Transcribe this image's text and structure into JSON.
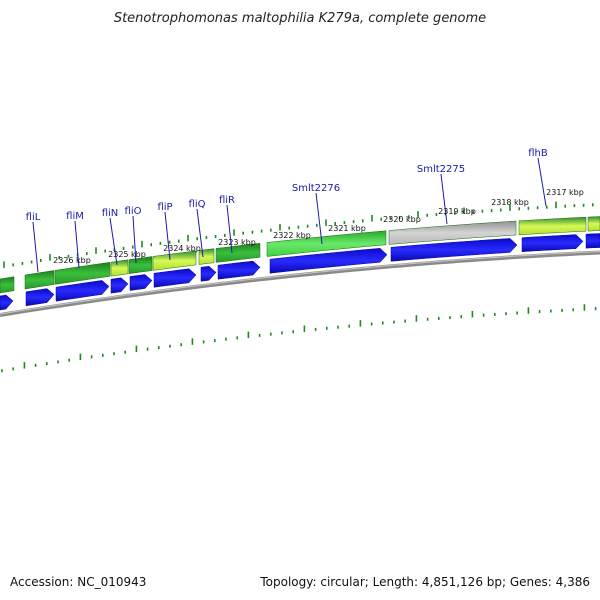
{
  "title": "Stenotrophomonas maltophilia K279a, complete genome",
  "footer": {
    "accession": "Accession: NC_010943",
    "summary": "Topology: circular; Length: 4,851,126 bp; Genes: 4,386"
  },
  "gene_labels": [
    "fliL",
    "fliM",
    "fliN",
    "fliO",
    "fliP",
    "fliQ",
    "fliR",
    "Smlt2276",
    "Smlt2275",
    "flhB"
  ],
  "kbp_labels": [
    "2326 kbp",
    "2325 kbp",
    "2324 kbp",
    "2323 kbp",
    "2322 kbp",
    "2321 kbp",
    "2320 kbp",
    "2319 kbp",
    "2318 kbp",
    "2317 kbp"
  ],
  "colors": {
    "gene_arrow": "#1010e6",
    "cds_dark": "#1e7e1e",
    "cds_light": "#4ed84e",
    "cds_lime": "#c8f040",
    "hypothetical": "#b8b8b8",
    "tick": "#1e8a1e",
    "backbone": "#8a8a8a",
    "label_text": "#1a1aa8"
  }
}
